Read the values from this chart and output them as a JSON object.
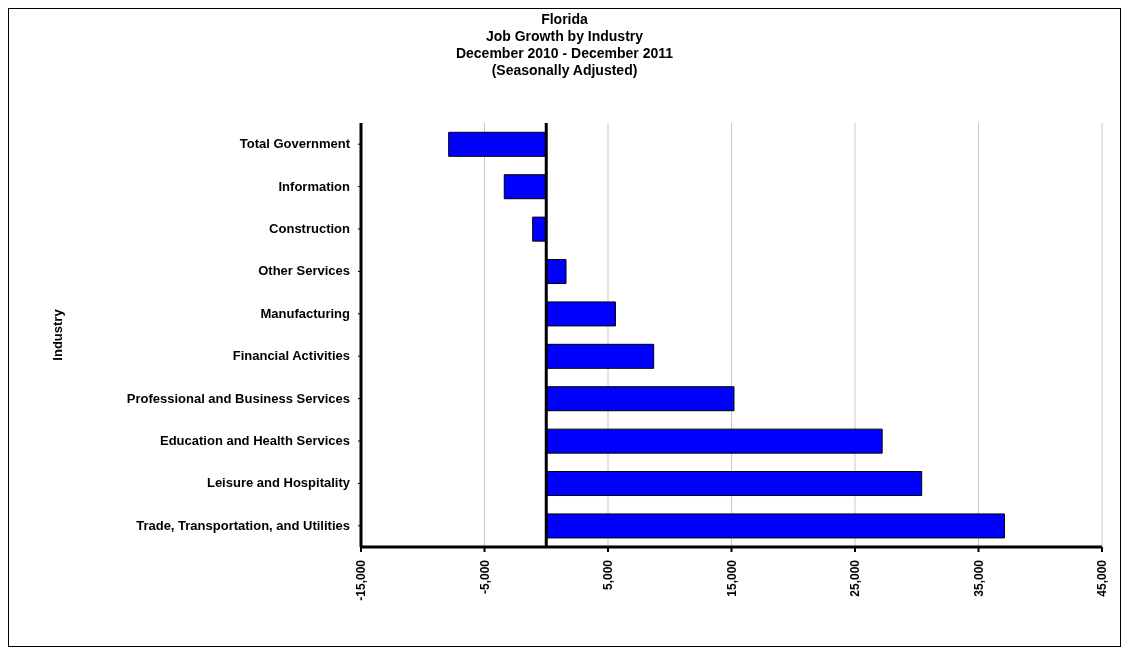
{
  "chart_data": {
    "type": "bar",
    "orientation": "horizontal",
    "title": "Florida\nJob Growth by Industry\nDecember 2010 - December 2011\n(Seasonally Adjusted)",
    "ylabel": "Industry",
    "categories": [
      "Total Government",
      "Information",
      "Construction",
      "Other Services",
      "Manufacturing",
      "Financial Activities",
      "Professional and Business Services",
      "Education and Health Services",
      "Leisure and Hospitality",
      "Trade, Transportation,  and Utilities"
    ],
    "values": [
      -7900,
      -3400,
      -1100,
      1600,
      5600,
      8700,
      15200,
      27200,
      30400,
      37100
    ],
    "color": "#0000ff",
    "xlim": [
      -15000,
      45000
    ],
    "xticks": [
      {
        "value": -15000,
        "label": "-15,000"
      },
      {
        "value": -5000,
        "label": "-5,000"
      },
      {
        "value": 5000,
        "label": "5,000"
      },
      {
        "value": 15000,
        "label": "15,000"
      },
      {
        "value": 25000,
        "label": "25,000"
      },
      {
        "value": 35000,
        "label": "35,000"
      },
      {
        "value": 45000,
        "label": "45,000"
      }
    ],
    "grid": "x",
    "ref_lines": [
      {
        "axis": "x",
        "value": 0,
        "label": null
      }
    ]
  }
}
